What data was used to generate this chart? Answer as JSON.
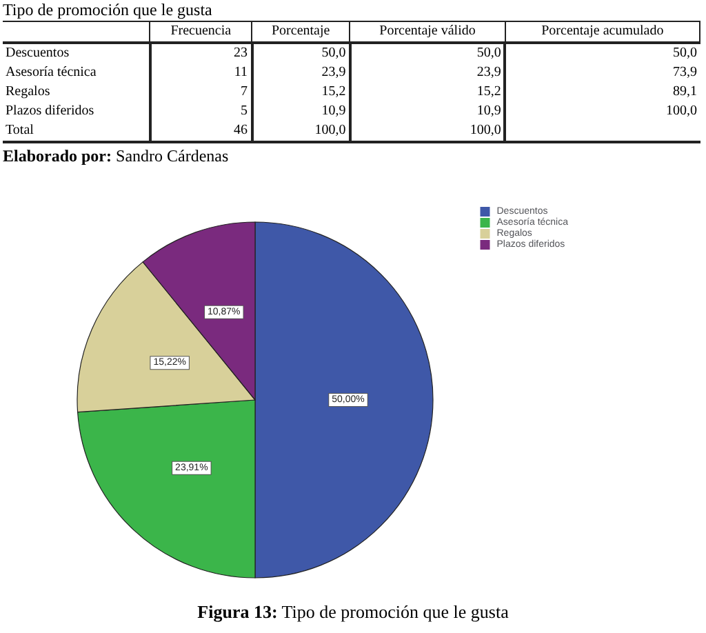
{
  "chart_data": [
    {
      "type": "other",
      "title": "Tipo de promoción que le gusta",
      "categories": [
        "Frecuencia",
        "Porcentaje",
        "Porcentaje válido",
        "Porcentaje acumulado"
      ],
      "y_categories": [
        "Descuentos",
        "Asesoría técnica",
        "Regalos",
        "Plazos diferidos",
        "Total"
      ],
      "cell_labels": [
        [
          "23",
          "50,0",
          "50,0",
          "50,0"
        ],
        [
          "11",
          "23,9",
          "23,9",
          "73,9"
        ],
        [
          "7",
          "15,2",
          "15,2",
          "89,1"
        ],
        [
          "5",
          "10,9",
          "10,9",
          "100,0"
        ],
        [
          "46",
          "100,0",
          "100,0",
          null
        ]
      ],
      "annotations": [
        "Elaborado por: Sandro Cárdenas"
      ]
    },
    {
      "type": "pie",
      "categories": [
        "Descuentos",
        "Asesoría técnica",
        "Regalos",
        "Plazos diferidos"
      ],
      "values": [
        50,
        23.91,
        15.22,
        10.87
      ],
      "colors": [
        "#3f58a8",
        "#3bb54a",
        "#d8d09a",
        "#7a2a7e"
      ],
      "value_labels": [
        "50,00%",
        "23,91%",
        "15,22%",
        "10,87%"
      ],
      "legend": "top right",
      "annotations": [
        "Figura 13: Tipo de promoción que le gusta"
      ]
    }
  ]
}
